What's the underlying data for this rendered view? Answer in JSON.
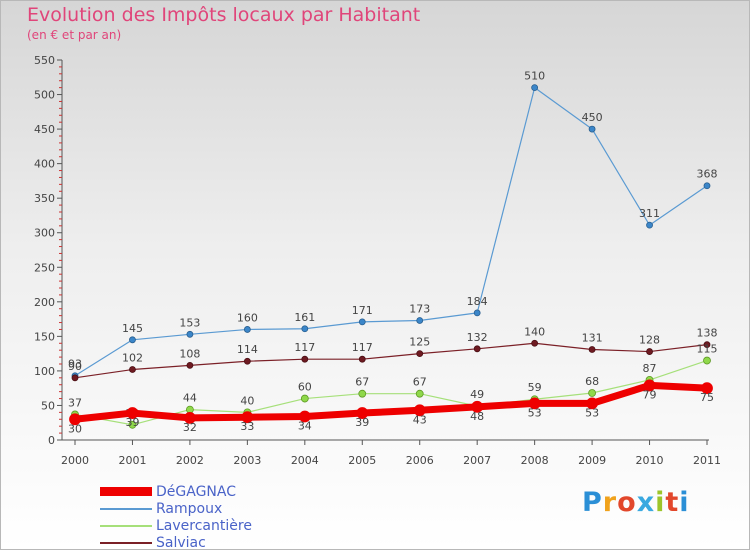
{
  "chart_data": {
    "type": "line",
    "title": "Evolution des Impôts locaux par Habitant",
    "subtitle": "(en € et par an)",
    "xlabel": "",
    "ylabel": "",
    "ylim": [
      0,
      550
    ],
    "yticks": [
      "0",
      "50",
      "100",
      "150",
      "200",
      "250",
      "300",
      "350",
      "400",
      "450",
      "500",
      "550"
    ],
    "categories": [
      "2000",
      "2001",
      "2002",
      "2003",
      "2004",
      "2005",
      "2006",
      "2007",
      "2008",
      "2009",
      "2010",
      "2011"
    ],
    "series": [
      {
        "name": "Rampoux",
        "color": "#5a9ad2",
        "values": [
          93,
          145,
          153,
          160,
          161,
          171,
          173,
          184,
          510,
          450,
          311,
          368
        ]
      },
      {
        "name": "Salviac",
        "color": "#7b2027",
        "values": [
          90,
          102,
          108,
          114,
          117,
          117,
          125,
          132,
          140,
          131,
          128,
          138
        ]
      },
      {
        "name": "Lavercantière",
        "color": "#a6e07a",
        "values": [
          37,
          22,
          44,
          40,
          60,
          67,
          67,
          49,
          59,
          68,
          87,
          115
        ]
      },
      {
        "name": "DéGAGNAC",
        "color": "#ee0000",
        "values": [
          30,
          39,
          32,
          33,
          34,
          39,
          43,
          48,
          53,
          53,
          79,
          75
        ]
      }
    ],
    "data_labels": {
      "Rampoux": [
        "93",
        "145",
        "153",
        "160",
        "161",
        "171",
        "173",
        "184",
        "510",
        "450",
        "311",
        "368"
      ],
      "Salviac": [
        "90",
        "102",
        "108",
        "114",
        "117",
        "117",
        "125",
        "132",
        "140",
        "131",
        "128",
        "138"
      ],
      "Lavercantière": [
        "37",
        "22",
        "44",
        "40",
        "60",
        "67",
        "67",
        "49",
        "59",
        "68",
        "87",
        "115"
      ],
      "DéGAGNAC": [
        "30",
        "39",
        "32",
        "33",
        "34",
        "39",
        "43",
        "48",
        "53",
        "53",
        "79",
        "75"
      ]
    },
    "legend": [
      "DéGAGNAC",
      "Rampoux",
      "Lavercantière",
      "Salviac"
    ],
    "legend_position": "bottom-left",
    "grid": false
  },
  "logo": {
    "text": "Proxiti",
    "colors": [
      "#2b8fd6",
      "#f0a21c",
      "#e2472b",
      "#3aa9e0",
      "#9dc52a",
      "#e2472b",
      "#2b8fd6"
    ]
  }
}
